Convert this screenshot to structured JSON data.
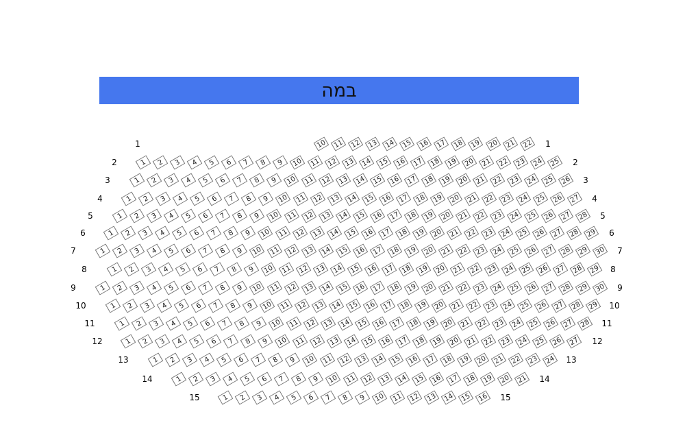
{
  "stage": {
    "label": "במה",
    "color": "#4577ee"
  },
  "rows": [
    {
      "row": "1",
      "first_seat": 10,
      "last_seat": 22
    },
    {
      "row": "2",
      "first_seat": 1,
      "last_seat": 25
    },
    {
      "row": "3",
      "first_seat": 1,
      "last_seat": 26
    },
    {
      "row": "4",
      "first_seat": 1,
      "last_seat": 27
    },
    {
      "row": "5",
      "first_seat": 1,
      "last_seat": 28
    },
    {
      "row": "6",
      "first_seat": 1,
      "last_seat": 29
    },
    {
      "row": "7",
      "first_seat": 1,
      "last_seat": 30
    },
    {
      "row": "8",
      "first_seat": 1,
      "last_seat": 29
    },
    {
      "row": "9",
      "first_seat": 1,
      "last_seat": 30
    },
    {
      "row": "10",
      "first_seat": 1,
      "last_seat": 29
    },
    {
      "row": "11",
      "first_seat": 1,
      "last_seat": 28
    },
    {
      "row": "12",
      "first_seat": 1,
      "last_seat": 27
    },
    {
      "row": "13",
      "first_seat": 1,
      "last_seat": 24
    },
    {
      "row": "14",
      "first_seat": 1,
      "last_seat": 21
    },
    {
      "row": "15",
      "first_seat": 1,
      "last_seat": 16
    }
  ]
}
